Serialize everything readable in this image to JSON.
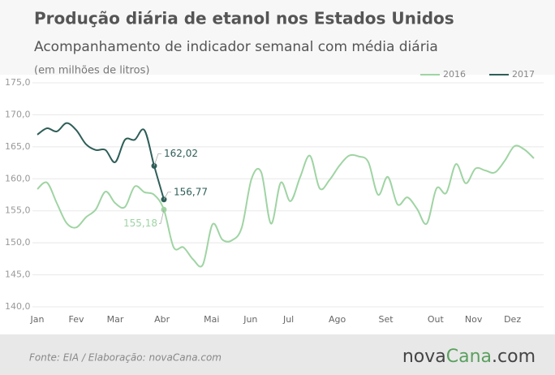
{
  "chart_data": {
    "type": "line",
    "title": "Produção diária de etanol nos Estados Unidos",
    "subtitle": "Acompanhamento de indicador semanal com média diária",
    "unit_note": "(em milhões de litros)",
    "x": [
      1,
      2,
      3,
      4,
      5,
      6,
      7,
      8,
      9,
      10,
      11,
      12,
      13,
      14,
      15,
      16,
      17,
      18,
      19,
      20,
      21,
      22,
      23,
      24,
      25,
      26,
      27,
      28,
      29,
      30,
      31,
      32,
      33,
      34,
      35,
      36,
      37,
      38,
      39,
      40,
      41,
      42,
      43,
      44,
      45,
      46,
      47,
      48,
      49,
      50,
      51,
      52
    ],
    "series": [
      {
        "name": "2016",
        "color": "#9fd4a3",
        "values": [
          158.4,
          159.4,
          156.2,
          153.1,
          152.4,
          154,
          155.2,
          158,
          156.2,
          155.6,
          158.8,
          157.9,
          157.5,
          155.18,
          149.3,
          149.3,
          147.4,
          146.6,
          152.9,
          150.5,
          150.4,
          152.4,
          160,
          161,
          153,
          159.4,
          156.5,
          160.3,
          163.6,
          158.5,
          159.8,
          162,
          163.6,
          163.5,
          162.6,
          157.5,
          160.3,
          156,
          157.1,
          155.3,
          153,
          158.5,
          157.8,
          162.3,
          159.3,
          161.6,
          161.3,
          161,
          162.8,
          165.1,
          164.6,
          163.2
        ],
        "value_labels": [
          null,
          null,
          null,
          null,
          null,
          null,
          null,
          null,
          null,
          null,
          null,
          null,
          null,
          "155,18",
          null,
          null,
          null,
          null,
          null,
          null,
          null,
          null,
          null,
          null,
          null,
          null,
          null,
          null,
          null,
          null,
          null,
          null,
          null,
          null,
          null,
          null,
          null,
          null,
          null,
          null,
          null,
          null,
          null,
          null,
          null,
          null,
          null,
          null,
          null,
          null,
          null,
          null
        ]
      },
      {
        "name": "2017",
        "color": "#2e5e58",
        "values": [
          166.9,
          167.9,
          167.4,
          168.7,
          167.6,
          165.4,
          164.5,
          164.5,
          162.6,
          166.1,
          166.1,
          167.6,
          162.02,
          156.77,
          null,
          null,
          null,
          null,
          null,
          null,
          null,
          null,
          null,
          null,
          null,
          null,
          null,
          null,
          null,
          null,
          null,
          null,
          null,
          null,
          null,
          null,
          null,
          null,
          null,
          null,
          null,
          null,
          null,
          null,
          null,
          null,
          null,
          null,
          null,
          null,
          null,
          null
        ],
        "value_labels": [
          null,
          null,
          null,
          null,
          null,
          null,
          null,
          null,
          null,
          null,
          null,
          null,
          "162,02",
          "156,77",
          null,
          null,
          null,
          null,
          null,
          null,
          null,
          null,
          null,
          null,
          null,
          null,
          null,
          null,
          null,
          null,
          null,
          null,
          null,
          null,
          null,
          null,
          null,
          null,
          null,
          null,
          null,
          null,
          null,
          null,
          null,
          null,
          null,
          null,
          null,
          null,
          null,
          null
        ]
      }
    ],
    "xlim": [
      1,
      52
    ],
    "xticks": [
      {
        "value": 1,
        "label": "Jan"
      },
      {
        "value": 5,
        "label": "Fev"
      },
      {
        "value": 9,
        "label": "Mar"
      },
      {
        "value": 13.8,
        "label": "Abr"
      },
      {
        "value": 18.9,
        "label": "Mai"
      },
      {
        "value": 22.9,
        "label": "Jun"
      },
      {
        "value": 26.8,
        "label": "Jul"
      },
      {
        "value": 31.8,
        "label": "Ago"
      },
      {
        "value": 36.8,
        "label": "Set"
      },
      {
        "value": 41.9,
        "label": "Out"
      },
      {
        "value": 45.8,
        "label": "Nov"
      },
      {
        "value": 49.8,
        "label": "Dez"
      }
    ],
    "ylim": [
      140,
      175
    ],
    "yticks": [
      {
        "value": 140,
        "label": "140,0"
      },
      {
        "value": 145,
        "label": "145,0"
      },
      {
        "value": 150,
        "label": "150,0"
      },
      {
        "value": 155,
        "label": "155,0"
      },
      {
        "value": 160,
        "label": "160,0"
      },
      {
        "value": 165,
        "label": "165,0"
      },
      {
        "value": 170,
        "label": "170,0"
      },
      {
        "value": 175,
        "label": "175,0"
      }
    ],
    "grid": true,
    "legend": "top-right"
  },
  "footer": {
    "source": "Fonte:  EIA  / Elaboração:  novaCana.com",
    "logo": [
      "nova",
      "Cana",
      ".com"
    ]
  }
}
